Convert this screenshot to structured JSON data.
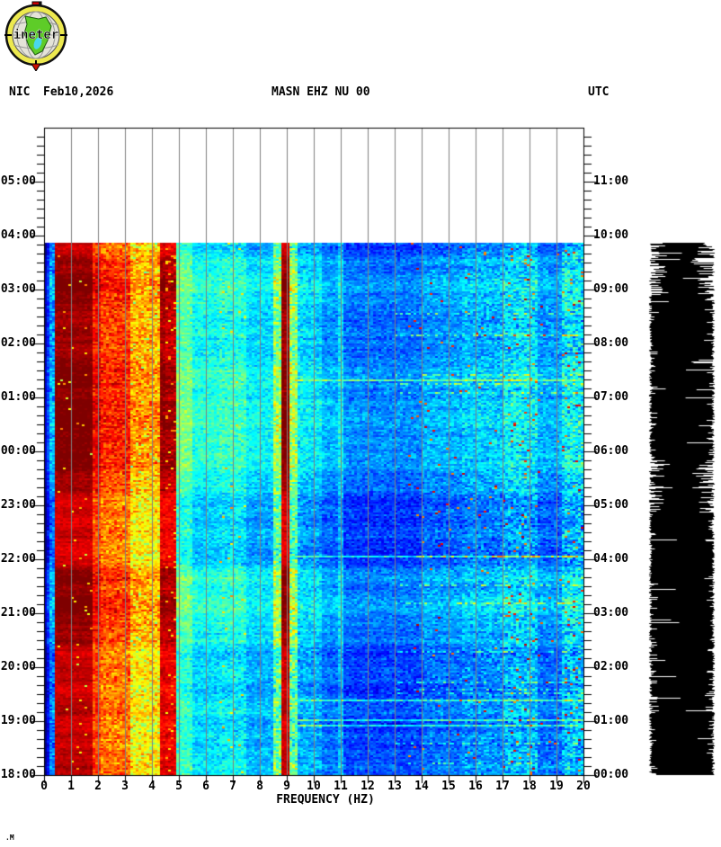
{
  "header": {
    "network": "NIC",
    "date": "Feb10,2026",
    "station": "MASN EHZ NU 00",
    "utc_label": "UTC"
  },
  "logo": {
    "name": "ineter-logo",
    "text": "ineter"
  },
  "watermark": ".M",
  "colors": {
    "background": "#ffffff",
    "text": "#000000",
    "grid": "#808080",
    "frame": "#000000",
    "waveform": "#000000",
    "logo_ring": "#ede94f",
    "logo_globe": "#e4e3d8",
    "logo_land": "#5ecc28",
    "logo_lake": "#49d7ee",
    "logo_flag": "#dd0000"
  },
  "chart_data": {
    "type": "heatmap",
    "subtype": "seismic-spectrogram",
    "title": "MASN EHZ NU 00",
    "xlabel": "FREQUENCY (HZ)",
    "xlim": [
      0,
      20
    ],
    "x_ticks": [
      0,
      1,
      2,
      3,
      4,
      5,
      6,
      7,
      8,
      9,
      10,
      11,
      12,
      13,
      14,
      15,
      16,
      17,
      18,
      19,
      20
    ],
    "left_time_ticks": [
      "05:00",
      "04:00",
      "03:00",
      "02:00",
      "01:00",
      "00:00",
      "23:00",
      "22:00",
      "21:00",
      "20:00",
      "19:00",
      "18:00"
    ],
    "right_time_ticks": [
      "11:00",
      "10:00",
      "09:00",
      "08:00",
      "07:00",
      "06:00",
      "05:00",
      "04:00",
      "03:00",
      "02:00",
      "01:00",
      "00:00"
    ],
    "time_span_hours": 12,
    "minor_tick_minutes": 10,
    "data_start_local": "18:00",
    "data_end_local": "03:52",
    "utc_offset_hours": 6,
    "colormap": "jet",
    "grid": "vertical gray lines every 1 Hz",
    "legend_position": "none",
    "spectral_lines_hz": [
      9.0,
      11.0
    ],
    "strong_bands_hz": [
      [
        0.45,
        1.85
      ],
      [
        4.35,
        4.95
      ],
      [
        8.8,
        9.15
      ]
    ],
    "band_profile": [
      {
        "f0": 0.0,
        "f1": 0.12,
        "v": 0.03,
        "n": 0.03
      },
      {
        "f0": 0.12,
        "f1": 0.2,
        "v": 0.15,
        "n": 0.08
      },
      {
        "f0": 0.2,
        "f1": 0.45,
        "v": 0.27,
        "n": 0.13
      },
      {
        "f0": 0.45,
        "f1": 1.85,
        "v": 0.96,
        "n": 0.04
      },
      {
        "f0": 1.85,
        "f1": 2.15,
        "v": 0.84,
        "n": 0.1
      },
      {
        "f0": 2.15,
        "f1": 3.2,
        "v": 0.78,
        "n": 0.13
      },
      {
        "f0": 3.2,
        "f1": 4.35,
        "v": 0.66,
        "n": 0.15
      },
      {
        "f0": 4.35,
        "f1": 4.95,
        "v": 0.92,
        "n": 0.07
      },
      {
        "f0": 4.95,
        "f1": 5.5,
        "v": 0.45,
        "n": 0.1
      },
      {
        "f0": 5.5,
        "f1": 6.5,
        "v": 0.37,
        "n": 0.09
      },
      {
        "f0": 6.5,
        "f1": 7.5,
        "v": 0.39,
        "n": 0.11
      },
      {
        "f0": 7.5,
        "f1": 8.55,
        "v": 0.33,
        "n": 0.09
      },
      {
        "f0": 8.55,
        "f1": 8.8,
        "v": 0.5,
        "n": 0.18
      },
      {
        "f0": 8.8,
        "f1": 9.15,
        "v": 0.95,
        "n": 0.05
      },
      {
        "f0": 9.15,
        "f1": 9.4,
        "v": 0.5,
        "n": 0.18
      },
      {
        "f0": 9.4,
        "f1": 10.3,
        "v": 0.32,
        "n": 0.11
      },
      {
        "f0": 10.3,
        "f1": 10.9,
        "v": 0.26,
        "n": 0.09
      },
      {
        "f0": 10.9,
        "f1": 11.15,
        "v": 0.33,
        "n": 0.1
      },
      {
        "f0": 11.15,
        "f1": 14.0,
        "v": 0.22,
        "n": 0.09
      },
      {
        "f0": 14.0,
        "f1": 15.5,
        "v": 0.26,
        "n": 0.1
      },
      {
        "f0": 15.5,
        "f1": 17.0,
        "v": 0.29,
        "n": 0.12
      },
      {
        "f0": 17.0,
        "f1": 18.3,
        "v": 0.33,
        "n": 0.15
      },
      {
        "f0": 18.3,
        "f1": 19.2,
        "v": 0.26,
        "n": 0.1
      },
      {
        "f0": 19.2,
        "f1": 20.0,
        "v": 0.34,
        "n": 0.17
      }
    ]
  },
  "side_waveform": {
    "description": "clipped vertical seismogram drum trace",
    "color": "#000000"
  }
}
